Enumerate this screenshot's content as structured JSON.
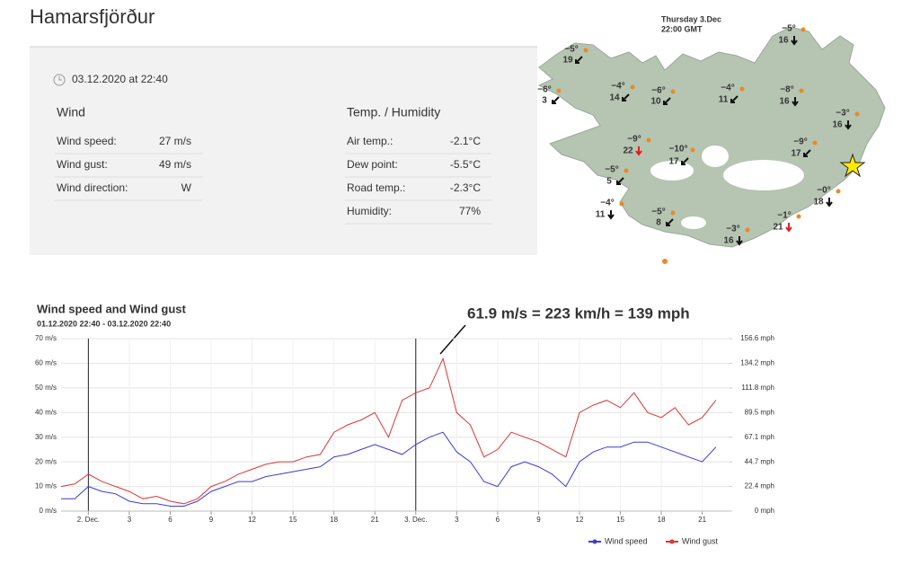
{
  "header": {
    "title": "Hamarsfjörður"
  },
  "station": {
    "timestamp": "03.12.2020 at 22:40",
    "wind": {
      "title": "Wind",
      "rows": [
        [
          "Wind speed:",
          "27 m/s"
        ],
        [
          "Wind gust:",
          "49 m/s"
        ],
        [
          "Wind direction:",
          "W"
        ]
      ]
    },
    "temp": {
      "title": "Temp. / Humidity",
      "rows": [
        [
          "Air temp.:",
          "-2.1°C"
        ],
        [
          "Dew point:",
          "-5.5°C"
        ],
        [
          "Road temp.:",
          "-2.3°C"
        ],
        [
          "Humidity:",
          "77%"
        ]
      ]
    }
  },
  "map": {
    "date": "Thursday 3.Dec",
    "time": "22:00 GMT",
    "stations": [
      {
        "temp": "−5°",
        "wind": "19"
      },
      {
        "temp": "−6°",
        "wind": "3"
      },
      {
        "temp": "−4°",
        "wind": "14"
      },
      {
        "temp": "−6°",
        "wind": "10"
      },
      {
        "temp": "−4°",
        "wind": "11"
      },
      {
        "temp": "−8°",
        "wind": "16"
      },
      {
        "temp": "−5°",
        "wind": "16"
      },
      {
        "temp": "−3°",
        "wind": "16"
      },
      {
        "temp": "−9°",
        "wind": "22"
      },
      {
        "temp": "−10°",
        "wind": "17"
      },
      {
        "temp": "−9°",
        "wind": "17"
      },
      {
        "temp": "−5°",
        "wind": "5"
      },
      {
        "temp": "−0°",
        "wind": "18"
      },
      {
        "temp": "−4°",
        "wind": "11"
      },
      {
        "temp": "−5°",
        "wind": "8"
      },
      {
        "temp": "−1°",
        "wind": "21"
      },
      {
        "temp": "−3°",
        "wind": "16"
      }
    ]
  },
  "chart_data": {
    "type": "line",
    "title": "Wind speed and Wind gust",
    "subtitle": "01.12.2020 22:40 - 03.12.2020 22:40",
    "annotation": "61.9 m/s = 223 km/h = 139 mph",
    "x": [
      22,
      23,
      24,
      25,
      26,
      27,
      28,
      29,
      30,
      31,
      32,
      33,
      34,
      35,
      36,
      37,
      38,
      39,
      40,
      41,
      42,
      43,
      44,
      45,
      46,
      47,
      48,
      49,
      50,
      51,
      52,
      53,
      54,
      55,
      56,
      57,
      58,
      59,
      60,
      61,
      62,
      63,
      64,
      65,
      66,
      67,
      68,
      69,
      70
    ],
    "xlim": [
      22,
      71
    ],
    "xticks": [
      {
        "value": 24,
        "label": "2. Dec."
      },
      {
        "value": 27,
        "label": "3"
      },
      {
        "value": 30,
        "label": "6"
      },
      {
        "value": 33,
        "label": "9"
      },
      {
        "value": 36,
        "label": "12"
      },
      {
        "value": 39,
        "label": "15"
      },
      {
        "value": 42,
        "label": "18"
      },
      {
        "value": 45,
        "label": "21"
      },
      {
        "value": 48,
        "label": "3. Dec."
      },
      {
        "value": 51,
        "label": "3"
      },
      {
        "value": 54,
        "label": "6"
      },
      {
        "value": 57,
        "label": "9"
      },
      {
        "value": 60,
        "label": "12"
      },
      {
        "value": 63,
        "label": "15"
      },
      {
        "value": 66,
        "label": "18"
      },
      {
        "value": 69,
        "label": "21"
      }
    ],
    "ylim": [
      0,
      70
    ],
    "yticks": [
      {
        "value": 0,
        "label": "0 m/s"
      },
      {
        "value": 10,
        "label": "10 m/s"
      },
      {
        "value": 20,
        "label": "20 m/s"
      },
      {
        "value": 30,
        "label": "30 m/s"
      },
      {
        "value": 40,
        "label": "40 m/s"
      },
      {
        "value": 50,
        "label": "50 m/s"
      },
      {
        "value": 60,
        "label": "60 m/s"
      },
      {
        "value": 70,
        "label": "70 m/s"
      }
    ],
    "y2lim": [
      0,
      156.6
    ],
    "y2ticks": [
      {
        "value": 0,
        "label": "0 mph"
      },
      {
        "value": 22.4,
        "label": "22.4 mph"
      },
      {
        "value": 44.7,
        "label": "44.7 mph"
      },
      {
        "value": 67.1,
        "label": "67.1 mph"
      },
      {
        "value": 89.5,
        "label": "89.5 mph"
      },
      {
        "value": 111.8,
        "label": "111.8 mph"
      },
      {
        "value": 134.2,
        "label": "134.2 mph"
      },
      {
        "value": 156.6,
        "label": "156.6 mph"
      }
    ],
    "grid": true,
    "series": [
      {
        "name": "Wind speed",
        "color": "#3a3ae0",
        "values": [
          5,
          5,
          10,
          8,
          7,
          4,
          3,
          3,
          2,
          2,
          4,
          8,
          10,
          12,
          12,
          14,
          15,
          16,
          17,
          18,
          22,
          23,
          25,
          27,
          25,
          23,
          27,
          30,
          32,
          24,
          20,
          12,
          10,
          18,
          20,
          18,
          15,
          10,
          20,
          24,
          26,
          26,
          28,
          28,
          26,
          24,
          22,
          20,
          26
        ]
      },
      {
        "name": "Wind gust",
        "color": "#e03434",
        "values": [
          10,
          11,
          15,
          12,
          10,
          8,
          5,
          6,
          4,
          3,
          5,
          10,
          12,
          15,
          17,
          19,
          20,
          20,
          22,
          23,
          32,
          35,
          37,
          40,
          30,
          45,
          48,
          50,
          61.9,
          40,
          35,
          22,
          25,
          32,
          30,
          28,
          25,
          22,
          40,
          43,
          45,
          42,
          48,
          40,
          38,
          42,
          35,
          38,
          45
        ]
      }
    ]
  }
}
